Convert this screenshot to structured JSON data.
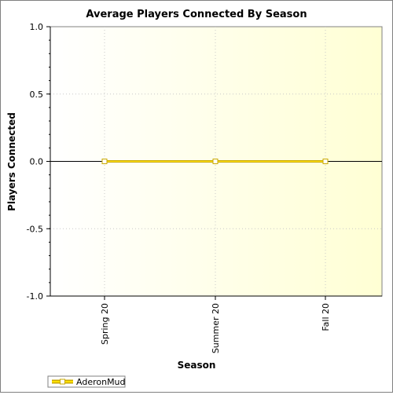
{
  "chart_data": {
    "type": "line",
    "title": "Average Players Connected By Season",
    "xlabel": "Season",
    "ylabel": "Players Connected",
    "categories": [
      "Spring 20",
      "Summer 20",
      "Fall 20"
    ],
    "series": [
      {
        "name": "AderonMud",
        "values": [
          0,
          0,
          0
        ]
      }
    ],
    "ylim": [
      -1.0,
      1.0
    ],
    "yticks": [
      "1.0",
      "0.5",
      "0.0",
      "-0.5",
      "-1.0"
    ],
    "grid": true,
    "legend": "bottom-left",
    "colors": {
      "series_line": "#c9a800",
      "series_fill": "#ffe000",
      "plot_bg_left": "#ffffff",
      "plot_bg_right": "#ffffd4",
      "grid": "#c8c8c8"
    }
  }
}
